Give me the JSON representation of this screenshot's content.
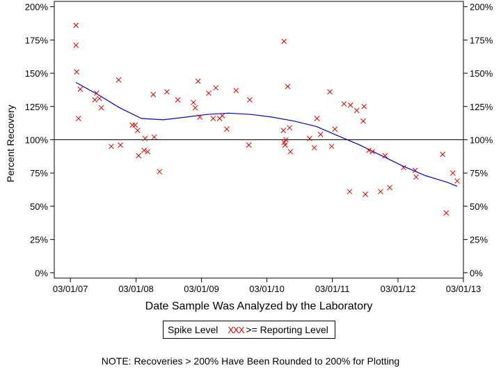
{
  "chart_data": {
    "type": "scatter",
    "xlabel": "Date Sample Was Analyzed by the Laboratory",
    "ylabel": "Percent Recovery",
    "x_ticks": [
      "03/01/07",
      "03/01/08",
      "03/01/09",
      "03/01/10",
      "03/01/11",
      "03/01/12",
      "03/01/13"
    ],
    "y_ticks": [
      "0%",
      "25%",
      "50%",
      "75%",
      "100%",
      "125%",
      "150%",
      "175%",
      "200%"
    ],
    "xlim": [
      "2006-12-01",
      "2013-03-01"
    ],
    "ylim": [
      -4,
      204
    ],
    "reference_line": 100,
    "grid": false,
    "colors": {
      "points": "#e00000",
      "fit": "#0000cc",
      "axis": "#000000"
    },
    "series": [
      {
        "name": ">= Reporting Level",
        "marker": "x",
        "points": [
          {
            "x": "2007-04-01",
            "y": 186
          },
          {
            "x": "2007-04-01",
            "y": 171
          },
          {
            "x": "2007-04-05",
            "y": 151
          },
          {
            "x": "2007-04-15",
            "y": 116
          },
          {
            "x": "2007-04-25",
            "y": 138
          },
          {
            "x": "2007-07-15",
            "y": 130
          },
          {
            "x": "2007-07-25",
            "y": 135
          },
          {
            "x": "2007-08-10",
            "y": 131
          },
          {
            "x": "2007-08-20",
            "y": 124
          },
          {
            "x": "2007-10-15",
            "y": 95
          },
          {
            "x": "2007-11-25",
            "y": 145
          },
          {
            "x": "2007-12-05",
            "y": 96
          },
          {
            "x": "2008-02-10",
            "y": 111
          },
          {
            "x": "2008-02-25",
            "y": 111
          },
          {
            "x": "2008-03-10",
            "y": 107
          },
          {
            "x": "2008-03-15",
            "y": 88
          },
          {
            "x": "2008-04-15",
            "y": 92
          },
          {
            "x": "2008-04-20",
            "y": 101
          },
          {
            "x": "2008-05-05",
            "y": 91
          },
          {
            "x": "2008-06-05",
            "y": 134
          },
          {
            "x": "2008-06-10",
            "y": 102
          },
          {
            "x": "2008-07-10",
            "y": 76
          },
          {
            "x": "2008-08-20",
            "y": 136
          },
          {
            "x": "2008-10-20",
            "y": 130
          },
          {
            "x": "2009-01-15",
            "y": 128
          },
          {
            "x": "2009-01-25",
            "y": 124
          },
          {
            "x": "2009-02-10",
            "y": 144
          },
          {
            "x": "2009-02-20",
            "y": 117
          },
          {
            "x": "2009-04-10",
            "y": 135
          },
          {
            "x": "2009-05-05",
            "y": 116
          },
          {
            "x": "2009-05-20",
            "y": 139
          },
          {
            "x": "2009-06-10",
            "y": 116
          },
          {
            "x": "2009-06-25",
            "y": 118
          },
          {
            "x": "2009-07-20",
            "y": 108
          },
          {
            "x": "2009-09-10",
            "y": 137
          },
          {
            "x": "2009-11-20",
            "y": 96
          },
          {
            "x": "2009-11-25",
            "y": 130
          },
          {
            "x": "2010-06-05",
            "y": 174
          },
          {
            "x": "2010-06-01",
            "y": 107
          },
          {
            "x": "2010-06-05",
            "y": 98
          },
          {
            "x": "2010-06-10",
            "y": 96
          },
          {
            "x": "2010-06-15",
            "y": 100
          },
          {
            "x": "2010-06-25",
            "y": 140
          },
          {
            "x": "2010-07-05",
            "y": 109
          },
          {
            "x": "2010-07-10",
            "y": 91
          },
          {
            "x": "2010-10-25",
            "y": 101
          },
          {
            "x": "2010-11-20",
            "y": 94
          },
          {
            "x": "2010-12-05",
            "y": 116
          },
          {
            "x": "2010-12-25",
            "y": 104
          },
          {
            "x": "2011-02-15",
            "y": 136
          },
          {
            "x": "2011-02-25",
            "y": 95
          },
          {
            "x": "2011-03-15",
            "y": 108
          },
          {
            "x": "2011-05-05",
            "y": 127
          },
          {
            "x": "2011-06-05",
            "y": 61
          },
          {
            "x": "2011-06-10",
            "y": 126
          },
          {
            "x": "2011-07-15",
            "y": 122
          },
          {
            "x": "2011-08-20",
            "y": 114
          },
          {
            "x": "2011-08-25",
            "y": 125
          },
          {
            "x": "2011-09-01",
            "y": 59
          },
          {
            "x": "2011-09-20",
            "y": 92
          },
          {
            "x": "2011-10-10",
            "y": 91
          },
          {
            "x": "2011-11-25",
            "y": 61
          },
          {
            "x": "2011-12-20",
            "y": 88
          },
          {
            "x": "2012-01-15",
            "y": 64
          },
          {
            "x": "2012-04-01",
            "y": 79
          },
          {
            "x": "2012-06-05",
            "y": 77
          },
          {
            "x": "2012-06-10",
            "y": 72
          },
          {
            "x": "2012-11-05",
            "y": 89
          },
          {
            "x": "2012-11-25",
            "y": 45
          },
          {
            "x": "2013-01-01",
            "y": 75
          },
          {
            "x": "2013-01-25",
            "y": 69
          }
        ]
      },
      {
        "name": "trend",
        "line": true,
        "points": [
          {
            "x": "2007-04-01",
            "y": 143
          },
          {
            "x": "2007-08-01",
            "y": 134
          },
          {
            "x": "2007-12-01",
            "y": 124
          },
          {
            "x": "2008-04-01",
            "y": 116
          },
          {
            "x": "2008-08-01",
            "y": 115
          },
          {
            "x": "2008-12-01",
            "y": 117
          },
          {
            "x": "2009-04-01",
            "y": 119
          },
          {
            "x": "2009-08-01",
            "y": 120
          },
          {
            "x": "2009-12-01",
            "y": 119
          },
          {
            "x": "2010-04-01",
            "y": 117
          },
          {
            "x": "2010-08-01",
            "y": 114
          },
          {
            "x": "2010-12-01",
            "y": 110
          },
          {
            "x": "2011-04-01",
            "y": 103
          },
          {
            "x": "2011-08-01",
            "y": 96
          },
          {
            "x": "2011-12-01",
            "y": 88
          },
          {
            "x": "2012-04-01",
            "y": 80
          },
          {
            "x": "2012-08-01",
            "y": 73
          },
          {
            "x": "2012-12-01",
            "y": 68
          },
          {
            "x": "2013-01-25",
            "y": 65
          }
        ]
      }
    ]
  },
  "legend": {
    "spike_label": "Spike Level",
    "marks": "XXX",
    "reporting_label": ">= Reporting Level"
  },
  "note": "NOTE: Recoveries > 200% Have Been Rounded to 200% for Plotting"
}
